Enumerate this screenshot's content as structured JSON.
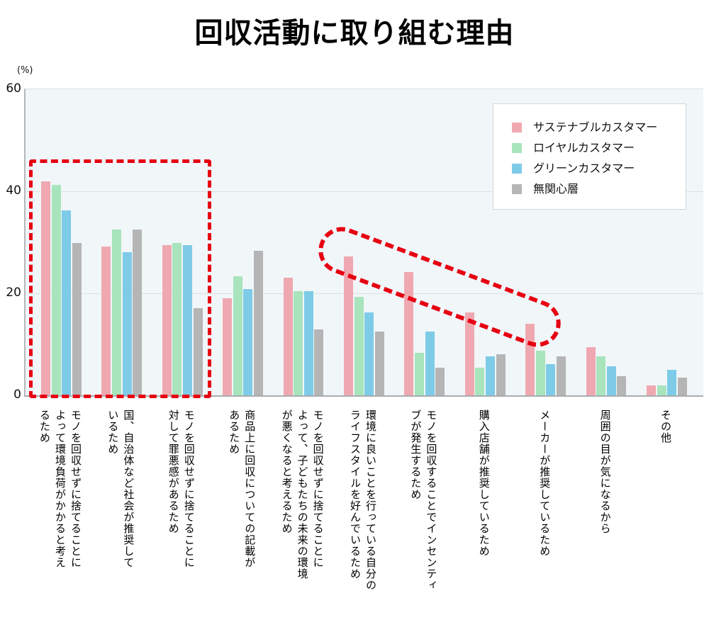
{
  "chart_data": {
    "type": "bar",
    "title": "回収活動に取り組む理由",
    "xlabel": "",
    "ylabel": "(%)",
    "ylim": [
      0,
      60
    ],
    "yticks": [
      0,
      20,
      40,
      60
    ],
    "grid": true,
    "legend_position": "top-right",
    "categories": [
      "モノを回収せずに捨てることによって環境負荷がかかると考えるため",
      "国、自治体など社会が推奨しているため",
      "モノを回収せずに捨てることに対して罪悪感があるため",
      "商品上に回収についての記載があるため",
      "モノを回収せずに捨てることによって、子どもたちの未来の環境が悪くなると考えるため",
      "環境に良いことを行っている自分のライフスタイルを好んでいるため",
      "モノを回収することでインセンティブが発生するため",
      "購入店舗が推奨しているため",
      "メーカーが推奨しているため",
      "周囲の目が気になるから",
      "その他"
    ],
    "series": [
      {
        "name": "サステナブルカスタマー",
        "color": "#f0a8b0",
        "values": [
          41.9,
          29.1,
          29.5,
          19.0,
          23.1,
          27.2,
          24.2,
          16.3,
          14.0,
          9.5,
          1.9
        ]
      },
      {
        "name": "ロイヤルカスタマー",
        "color": "#a8e4bc",
        "values": [
          41.2,
          32.5,
          29.9,
          23.4,
          20.4,
          19.3,
          8.4,
          5.4,
          8.8,
          7.6,
          1.9
        ]
      },
      {
        "name": "グリーンカスタマー",
        "color": "#7ecbe8",
        "values": [
          36.2,
          28.0,
          29.5,
          20.8,
          20.4,
          16.3,
          12.5,
          7.6,
          6.1,
          5.7,
          5.0
        ]
      },
      {
        "name": "無関心層",
        "color": "#b5b5b5",
        "values": [
          29.9,
          32.5,
          17.1,
          28.4,
          12.9,
          12.5,
          5.4,
          8.0,
          7.6,
          3.8,
          3.5
        ]
      }
    ],
    "annotations": [
      {
        "type": "dashed-rectangle",
        "color": "#e60012",
        "covers_categories": [
          0,
          1,
          2
        ]
      },
      {
        "type": "dashed-oval",
        "color": "#e60012",
        "covers": "サステナブルカスタマー bars for categories 5–8"
      }
    ]
  },
  "labels": {
    "title": "回収活動に取り組む理由",
    "unit": "(%)",
    "yticks": [
      "0",
      "20",
      "40",
      "60"
    ],
    "x": [
      "モノを回収せずに捨てることによって環境負荷がかかると考えるため",
      "国、自治体など社会が推奨しているため",
      "モノを回収せずに捨てることに対して罪悪感があるため",
      "商品上に回収についての記載があるため",
      "モノを回収せずに捨てることによって、子どもたちの未来の環境が悪くなると考えるため",
      "環境に良いことを行っている自分のライフスタイルを好んでいるため",
      "モノを回収することでインセンティブが発生するため",
      "購入店舗が推奨しているため",
      "メーカーが推奨しているため",
      "周囲の目が気になるから",
      "その他"
    ],
    "x_lines": [
      [
        "モノを回収せずに捨てることに",
        "よって環境負荷がかかると考え",
        "るため"
      ],
      [
        "国、自治体など社会が推奨して",
        "いるため"
      ],
      [
        "モノを回収せずに捨てることに",
        "対して罪悪感があるため"
      ],
      [
        "商品上に回収についての記載が",
        "あるため"
      ],
      [
        "モノを回収せずに捨てることに",
        "よって、子どもたちの未来の環境",
        "が悪くなると考えるため"
      ],
      [
        "環境に良いことを行っている自分の",
        "ライフスタイルを好んでいるため"
      ],
      [
        "モノを回収することでインセンティ",
        "ブが発生するため"
      ],
      [
        "購入店舗が推奨しているため"
      ],
      [
        "メーカーが推奨しているため"
      ],
      [
        "周囲の目が気になるから"
      ],
      [
        "その他"
      ]
    ]
  },
  "legend": [
    {
      "label": "サステナブルカスタマー",
      "color": "#f0a8b0"
    },
    {
      "label": "ロイヤルカスタマー",
      "color": "#a8e4bc"
    },
    {
      "label": "グリーンカスタマー",
      "color": "#7ecbe8"
    },
    {
      "label": "無関心層",
      "color": "#b5b5b5"
    }
  ]
}
